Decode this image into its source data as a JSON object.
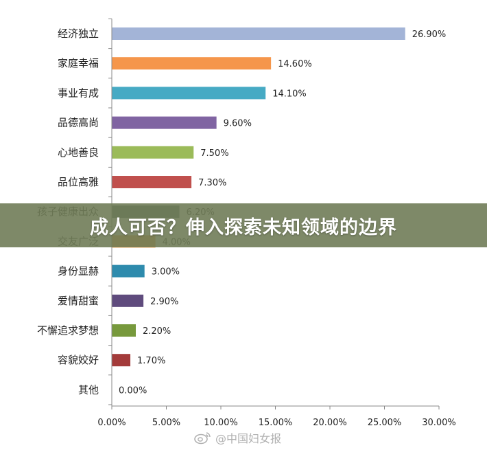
{
  "banner": {
    "title": "成人可否？伸入探索未知领域的边界"
  },
  "watermark": {
    "text": "@中国妇女报"
  },
  "chart_data": {
    "type": "bar",
    "orientation": "horizontal",
    "categories": [
      "经济独立",
      "家庭幸福",
      "事业有成",
      "品德高尚",
      "心地善良",
      "品位高雅",
      "孩子健康出众",
      "交友广泛",
      "身份显赫",
      "爱情甜蜜",
      "不懈追求梦想",
      "容貌姣好",
      "其他"
    ],
    "values": [
      26.9,
      14.6,
      14.1,
      9.6,
      7.5,
      7.3,
      6.2,
      4.0,
      3.0,
      2.9,
      2.2,
      1.7,
      0.0
    ],
    "value_labels": [
      "26.90%",
      "14.60%",
      "14.10%",
      "9.60%",
      "7.50%",
      "7.30%",
      "6.20%",
      "4.00%",
      "3.00%",
      "2.90%",
      "2.20%",
      "1.70%",
      "0.00%"
    ],
    "colors": [
      "#a3b4d7",
      "#f5964b",
      "#46aac4",
      "#8064a2",
      "#9bbb59",
      "#c0504d",
      "#4b6a60",
      "#f39a36",
      "#2e8bad",
      "#5f4b7d",
      "#77993c",
      "#a33b3a",
      "#888888"
    ],
    "xlim": [
      0,
      30
    ],
    "xticks": [
      0,
      5,
      10,
      15,
      20,
      25,
      30
    ],
    "xtick_labels": [
      "0.00%",
      "5.00%",
      "10.00%",
      "15.00%",
      "20.00%",
      "25.00%",
      "30.00%"
    ],
    "title": "",
    "xlabel": "",
    "ylabel": "",
    "grid": false,
    "legend": "none"
  }
}
